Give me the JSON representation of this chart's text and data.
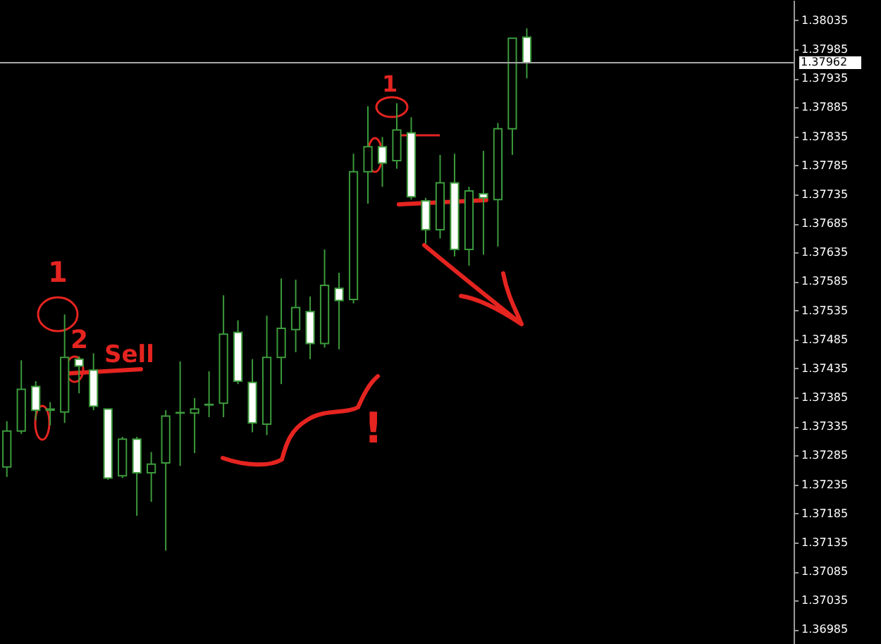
{
  "chart_data": {
    "type": "candlestick",
    "categories": [
      null,
      null,
      null,
      null,
      null,
      null,
      null,
      null,
      null,
      null,
      null,
      null,
      null,
      null,
      null,
      null,
      null,
      null,
      null,
      null,
      null,
      null,
      null,
      null,
      null,
      null,
      null,
      null,
      null,
      null,
      null,
      null,
      null,
      null,
      null,
      null,
      null,
      null,
      null,
      null,
      null,
      null,
      null,
      null,
      null,
      null,
      null,
      null,
      null,
      null,
      null,
      null,
      null,
      null,
      null
    ],
    "ohlc": [
      [
        1.37265,
        1.37344,
        1.37248,
        1.37327
      ],
      [
        1.37327,
        1.37449,
        1.37322,
        1.37399
      ],
      [
        1.37404,
        1.37413,
        1.37346,
        1.37363
      ],
      [
        1.37363,
        1.37377,
        1.37337,
        1.37365
      ],
      [
        1.3736,
        1.37528,
        1.37341,
        1.37454
      ],
      [
        1.37451,
        1.37456,
        1.37392,
        1.37439
      ],
      [
        1.37432,
        1.37461,
        1.37363,
        1.3737
      ],
      [
        1.37365,
        1.37365,
        1.37243,
        1.37246
      ],
      [
        1.3725,
        1.37317,
        1.37246,
        1.37313
      ],
      [
        1.37313,
        1.37317,
        1.37181,
        1.37255
      ],
      [
        1.37255,
        1.37291,
        1.37205,
        1.3727
      ],
      [
        1.37272,
        1.37363,
        1.37121,
        1.37353
      ],
      [
        1.37358,
        1.37447,
        1.37267,
        1.37359
      ],
      [
        1.37358,
        1.37384,
        1.37289,
        1.37365
      ],
      [
        1.37372,
        1.3743,
        1.37351,
        1.37373
      ],
      [
        1.37375,
        1.37561,
        1.37351,
        1.37494
      ],
      [
        1.37497,
        1.37518,
        1.37408,
        1.37413
      ],
      [
        1.37411,
        1.37451,
        1.37325,
        1.37341
      ],
      [
        1.37339,
        1.37526,
        1.3732,
        1.37454
      ],
      [
        1.37454,
        1.3759,
        1.37408,
        1.37504
      ],
      [
        1.37502,
        1.37588,
        1.37463,
        1.3754
      ],
      [
        1.37533,
        1.37559,
        1.37451,
        1.37478
      ],
      [
        1.37478,
        1.3764,
        1.37471,
        1.37578
      ],
      [
        1.37573,
        1.376,
        1.37468,
        1.37552
      ],
      [
        1.37554,
        1.37805,
        1.37547,
        1.37774
      ],
      [
        1.37774,
        1.37887,
        1.37719,
        1.37817
      ],
      [
        1.37817,
        1.37834,
        1.37748,
        1.37789
      ],
      [
        1.37793,
        1.37892,
        1.37779,
        1.37846
      ],
      [
        1.37841,
        1.37868,
        1.37726,
        1.37731
      ],
      [
        1.37724,
        1.37729,
        1.3765,
        1.37674
      ],
      [
        1.37674,
        1.37803,
        1.37659,
        1.37755
      ],
      [
        1.37755,
        1.37805,
        1.37628,
        1.3764
      ],
      [
        1.3764,
        1.37748,
        1.37612,
        1.37741
      ],
      [
        1.37736,
        1.3781,
        1.37631,
        1.37729
      ],
      [
        1.37726,
        1.37858,
        1.37645,
        1.37848
      ],
      [
        1.37848,
        1.38004,
        1.37803,
        1.38004
      ],
      [
        1.38006,
        1.38021,
        1.37935,
        1.37962
      ],
      null,
      null,
      null,
      null,
      null,
      null,
      null,
      null,
      null,
      null,
      null,
      null,
      null,
      null,
      null,
      null,
      null,
      null
    ],
    "color": "#3c9a3c",
    "colors": [
      "#000000",
      "#000000",
      "#ffffff",
      "#000000",
      "#000000",
      "#ffffff",
      "#ffffff",
      "#ffffff",
      "#000000",
      "#ffffff",
      "#000000",
      "#000000",
      "#000000",
      "#000000",
      "#000000",
      "#000000",
      "#ffffff",
      "#ffffff",
      "#000000",
      "#000000",
      "#000000",
      "#ffffff",
      "#000000",
      "#ffffff",
      "#000000",
      "#000000",
      "#ffffff",
      "#000000",
      "#ffffff",
      "#ffffff",
      "#000000",
      "#ffffff",
      "#000000",
      "#ffffff",
      "#000000",
      "#000000",
      "#ffffff",
      null,
      null,
      null,
      null,
      null,
      null,
      null,
      null,
      null,
      null,
      null,
      null,
      null,
      null,
      null,
      null,
      null,
      null
    ],
    "ylim": [
      1.3696,
      1.3807
    ],
    "yticks": [
      1.36985,
      1.37035,
      1.37085,
      1.37135,
      1.37185,
      1.37235,
      1.37285,
      1.37335,
      1.37385,
      1.37435,
      1.37485,
      1.37535,
      1.37585,
      1.37635,
      1.37685,
      1.37735,
      1.37785,
      1.37835,
      1.37885,
      1.37935,
      1.37985,
      1.38035
    ],
    "tick_labels": "y",
    "grid": false,
    "ref_lines": [
      {
        "axis": "y",
        "value": 1.37962,
        "label": "1.37962",
        "color": "#a8a8a8"
      }
    ],
    "annotations": [
      "1",
      "2",
      "Sell",
      "1",
      "!"
    ]
  }
}
